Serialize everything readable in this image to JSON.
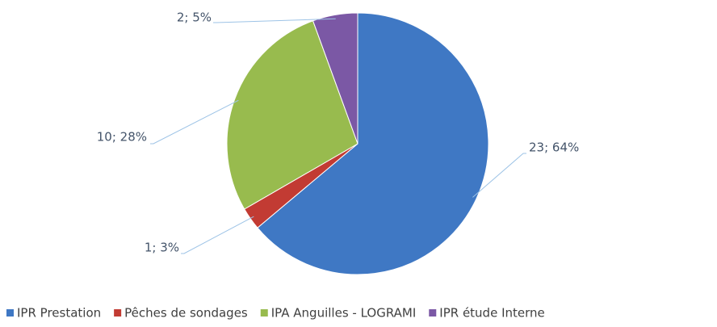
{
  "chart_data": {
    "type": "pie",
    "categories": [
      "IPR Prestation",
      "Pêches de sondages",
      "IPA Anguilles - LOGRAMI",
      "IPR étude Interne"
    ],
    "values": [
      23,
      1,
      10,
      2
    ],
    "value_labels": [
      "23; 64%",
      "1; 3%",
      "10; 28%",
      "2; 5%"
    ],
    "colors": [
      "#3f78c4",
      "#c23b33",
      "#98bb4e",
      "#7b58a5"
    ],
    "legend": "bottom"
  }
}
